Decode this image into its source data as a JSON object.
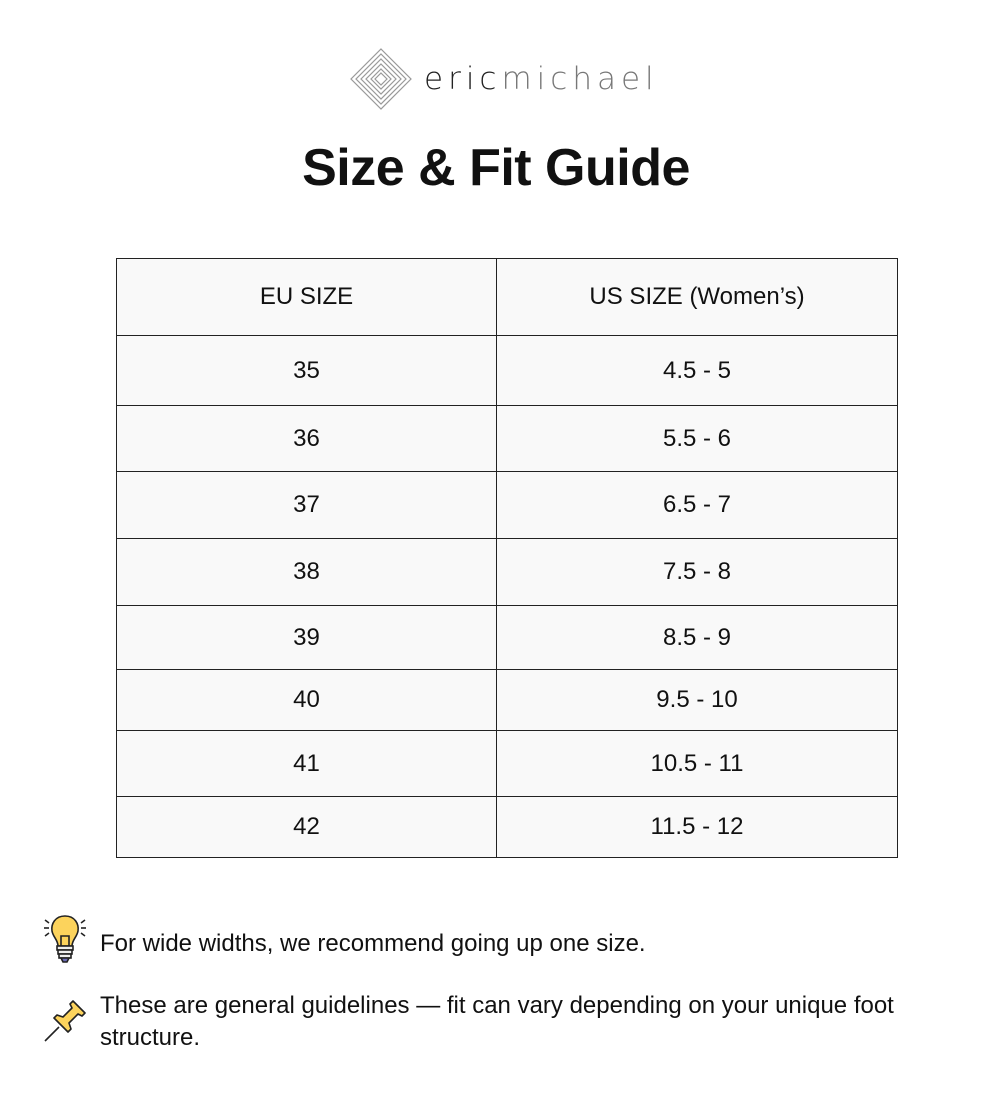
{
  "brand": {
    "part1": "eric",
    "part2": "michael"
  },
  "title": "Size & Fit Guide",
  "table": {
    "headers": [
      "EU SIZE",
      "US SIZE (Women’s)"
    ],
    "rows": [
      [
        "35",
        "4.5 - 5"
      ],
      [
        "36",
        "5.5 - 6"
      ],
      [
        "37",
        "6.5 - 7"
      ],
      [
        "38",
        "7.5 - 8"
      ],
      [
        "39",
        "8.5 - 9"
      ],
      [
        "40",
        "9.5 - 10"
      ],
      [
        "41",
        "10.5 - 11"
      ],
      [
        "42",
        "11.5 - 12"
      ]
    ]
  },
  "notes": [
    {
      "icon": "lightbulb-icon",
      "text": "For wide widths, we recommend going up one size."
    },
    {
      "icon": "pushpin-icon",
      "text": "These are general guidelines — fit can vary depending on your unique foot structure."
    }
  ]
}
